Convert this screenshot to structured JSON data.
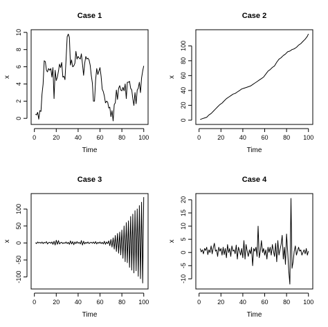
{
  "chart_data": [
    {
      "type": "line",
      "title": "Case 1",
      "xlabel": "Time",
      "ylabel": "x",
      "xlim": [
        1,
        100
      ],
      "ylim": [
        -0.3,
        9.9
      ],
      "xticks": [
        0,
        20,
        40,
        60,
        80,
        100
      ],
      "yticks": [
        0,
        2,
        4,
        6,
        8,
        10
      ],
      "x": [
        1,
        2,
        3,
        4,
        5,
        6,
        7,
        8,
        9,
        10,
        11,
        12,
        13,
        14,
        15,
        16,
        17,
        18,
        19,
        20,
        21,
        22,
        23,
        24,
        25,
        26,
        27,
        28,
        29,
        30,
        31,
        32,
        33,
        34,
        35,
        36,
        37,
        38,
        39,
        40,
        41,
        42,
        43,
        44,
        45,
        46,
        47,
        48,
        49,
        50,
        51,
        52,
        53,
        54,
        55,
        56,
        57,
        58,
        59,
        60,
        61,
        62,
        63,
        64,
        65,
        66,
        67,
        68,
        69,
        70,
        71,
        72,
        73,
        74,
        75,
        76,
        77,
        78,
        79,
        80,
        81,
        82,
        83,
        84,
        85,
        86,
        87,
        88,
        89,
        90,
        91,
        92,
        93,
        94,
        95,
        96,
        97,
        98,
        99,
        100
      ],
      "y": [
        0.5,
        0.4,
        0.7,
        -0.1,
        0.9,
        0.8,
        2.8,
        4.0,
        6.7,
        6.6,
        5.6,
        5.4,
        5.8,
        5.6,
        5.8,
        4.8,
        5.9,
        2.3,
        5.6,
        4.4,
        4.8,
        5.5,
        6.3,
        5.9,
        6.5,
        4.8,
        4.9,
        4.5,
        6.9,
        9.5,
        9.8,
        9.4,
        6.2,
        6.8,
        6.0,
        6.1,
        6.4,
        7.8,
        6.9,
        7.2,
        7.0,
        6.9,
        7.5,
        6.3,
        5.0,
        6.4,
        7.2,
        6.9,
        7.0,
        6.8,
        6.2,
        5.0,
        4.1,
        2.0,
        2.0,
        4.5,
        5.8,
        5.1,
        5.5,
        5.9,
        4.9,
        3.4,
        3.1,
        2.6,
        1.8,
        2.0,
        1.9,
        1.2,
        1.3,
        0.2,
        0.9,
        -0.3,
        1.6,
        1.8,
        3.3,
        2.2,
        3.5,
        3.8,
        3.3,
        3.2,
        3.6,
        3.2,
        4.0,
        2.3,
        4.2,
        4.2,
        4.3,
        3.5,
        3.3,
        2.3,
        1.5,
        3.0,
        1.7,
        3.3,
        3.5,
        4.2,
        3.0,
        4.7,
        5.5,
        6.1
      ]
    },
    {
      "type": "line",
      "title": "Case 2",
      "xlabel": "Time",
      "ylabel": "x",
      "xlim": [
        1,
        100
      ],
      "ylim": [
        -1,
        117
      ],
      "xticks": [
        0,
        20,
        40,
        60,
        80,
        100
      ],
      "yticks": [
        0,
        20,
        40,
        60,
        80,
        100
      ],
      "x": [
        1,
        3,
        5,
        7,
        9,
        11,
        13,
        15,
        17,
        19,
        21,
        23,
        25,
        27,
        29,
        31,
        33,
        35,
        37,
        39,
        41,
        43,
        45,
        47,
        49,
        51,
        53,
        55,
        57,
        59,
        61,
        63,
        65,
        67,
        69,
        71,
        73,
        75,
        77,
        79,
        81,
        83,
        85,
        87,
        89,
        91,
        93,
        95,
        97,
        99,
        100
      ],
      "y": [
        1,
        2,
        3,
        4,
        7,
        9,
        12,
        15,
        18,
        21,
        23,
        26,
        29,
        31,
        33,
        35,
        36,
        38,
        40,
        42,
        43,
        44,
        45,
        46,
        48,
        50,
        52,
        54,
        56,
        58,
        62,
        66,
        68,
        71,
        73,
        78,
        82,
        84,
        87,
        89,
        92,
        93,
        95,
        96,
        98,
        101,
        103,
        106,
        109,
        113,
        116
      ]
    },
    {
      "type": "line",
      "title": "Case 3",
      "xlabel": "Time",
      "ylabel": "x",
      "xlim": [
        1,
        100
      ],
      "ylim": [
        -125,
        135
      ],
      "xticks": [
        0,
        20,
        40,
        60,
        80,
        100
      ],
      "yticks": [
        -100,
        -50,
        0,
        50,
        100
      ],
      "x": [
        1,
        2,
        3,
        4,
        5,
        6,
        7,
        8,
        9,
        10,
        11,
        12,
        13,
        14,
        15,
        16,
        17,
        18,
        19,
        20,
        21,
        22,
        23,
        24,
        25,
        26,
        27,
        28,
        29,
        30,
        31,
        32,
        33,
        34,
        35,
        36,
        37,
        38,
        39,
        40,
        41,
        42,
        43,
        44,
        45,
        46,
        47,
        48,
        49,
        50,
        51,
        52,
        53,
        54,
        55,
        56,
        57,
        58,
        59,
        60,
        61,
        62,
        63,
        64,
        65,
        66,
        67,
        68,
        69,
        70,
        71,
        72,
        73,
        74,
        75,
        76,
        77,
        78,
        79,
        80,
        81,
        82,
        83,
        84,
        85,
        86,
        87,
        88,
        89,
        90,
        91,
        92,
        93,
        94,
        95,
        96,
        97,
        98,
        99,
        100
      ],
      "y": [
        1,
        -2,
        3,
        0,
        2,
        -1,
        3,
        -2,
        2,
        0,
        4,
        -3,
        1,
        2,
        -1,
        3,
        -4,
        5,
        -6,
        8,
        -4,
        7,
        -3,
        1,
        2,
        -2,
        1,
        -1,
        3,
        -2,
        2,
        -4,
        6,
        -3,
        4,
        -5,
        3,
        -2,
        4,
        -1,
        2,
        -3,
        7,
        -6,
        5,
        -3,
        2,
        -1,
        3,
        -2,
        1,
        2,
        -1,
        3,
        -2,
        4,
        -3,
        2,
        -1,
        3,
        -2,
        2,
        -3,
        5,
        -4,
        3,
        -2,
        6,
        -8,
        10,
        -12,
        15,
        -18,
        22,
        -25,
        28,
        -30,
        32,
        -35,
        38,
        -45,
        50,
        -55,
        60,
        -58,
        65,
        -72,
        78,
        -80,
        85,
        -88,
        95,
        -82,
        100,
        -98,
        110,
        -105,
        120,
        -118,
        135
      ]
    },
    {
      "type": "line",
      "title": "Case 4",
      "xlabel": "Time",
      "ylabel": "x",
      "xlim": [
        1,
        100
      ],
      "ylim": [
        -12.5,
        21
      ],
      "xticks": [
        0,
        20,
        40,
        60,
        80,
        100
      ],
      "yticks": [
        -10,
        -5,
        0,
        5,
        10,
        15,
        20
      ],
      "x": [
        1,
        2,
        3,
        4,
        5,
        6,
        7,
        8,
        9,
        10,
        11,
        12,
        13,
        14,
        15,
        16,
        17,
        18,
        19,
        20,
        21,
        22,
        23,
        24,
        25,
        26,
        27,
        28,
        29,
        30,
        31,
        32,
        33,
        34,
        35,
        36,
        37,
        38,
        39,
        40,
        41,
        42,
        43,
        44,
        45,
        46,
        47,
        48,
        49,
        50,
        51,
        52,
        53,
        54,
        55,
        56,
        57,
        58,
        59,
        60,
        61,
        62,
        63,
        64,
        65,
        66,
        67,
        68,
        69,
        70,
        71,
        72,
        73,
        74,
        75,
        76,
        77,
        78,
        79,
        80,
        81,
        82,
        83,
        84,
        85,
        86,
        87,
        88,
        89,
        90,
        91,
        92,
        93,
        94,
        95,
        96,
        97,
        98,
        99,
        100
      ],
      "y": [
        1.5,
        0.2,
        1.0,
        -0.5,
        1.5,
        0.8,
        2.0,
        -0.8,
        1.0,
        0.0,
        2.5,
        -0.5,
        1.8,
        3.5,
        0.5,
        1.0,
        -1.5,
        2.0,
        0.5,
        1.5,
        -1.0,
        2.0,
        -0.8,
        1.5,
        -2.0,
        3.0,
        0.0,
        1.5,
        -1.5,
        2.5,
        0.5,
        1.0,
        -0.5,
        2.8,
        -2.5,
        2.0,
        0.5,
        -1.0,
        1.5,
        -2.0,
        4.5,
        -2.5,
        3.0,
        0.5,
        -1.5,
        1.0,
        -0.5,
        2.0,
        -5.0,
        1.5,
        0.5,
        2.0,
        -1.5,
        10.0,
        -2.0,
        0.5,
        4.5,
        0.0,
        1.5,
        -1.0,
        1.0,
        -2.5,
        2.0,
        0.0,
        2.0,
        -1.0,
        3.0,
        0.5,
        -1.5,
        3.5,
        -3.5,
        4.5,
        -1.0,
        1.0,
        3.0,
        6.5,
        -2.5,
        2.0,
        -4.5,
        7.0,
        0.5,
        -7.0,
        -12.0,
        20.5,
        -6.0,
        -3.5,
        0.5,
        2.5,
        -1.0,
        0.5,
        2.0,
        0.5,
        1.0,
        -1.0,
        0.0,
        1.0,
        -0.5,
        1.5,
        -1.0,
        0.5
      ]
    }
  ]
}
